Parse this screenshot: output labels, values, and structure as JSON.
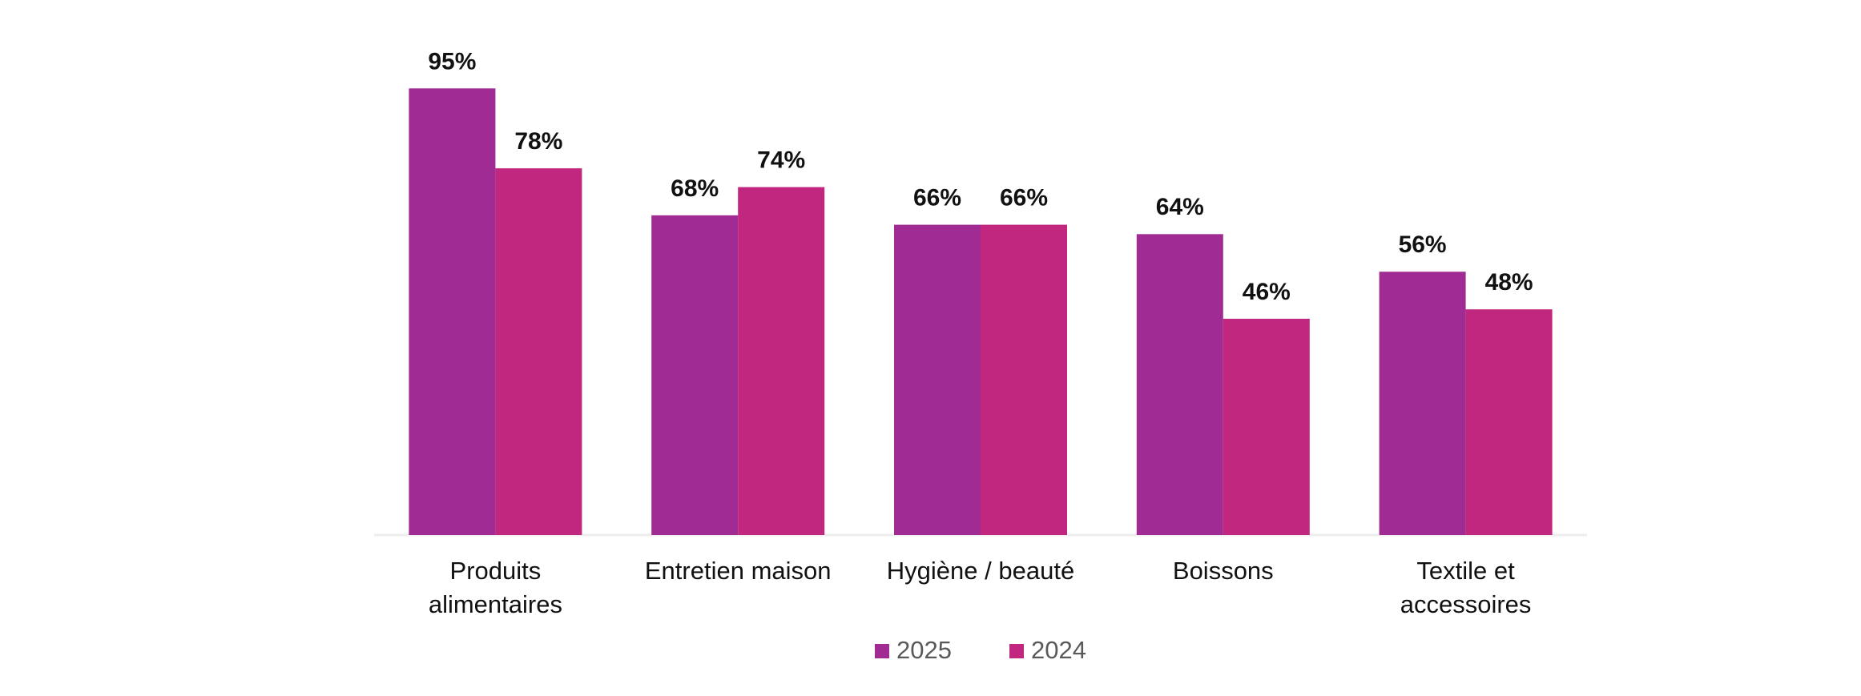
{
  "chart_data": {
    "type": "bar",
    "categories": [
      "Produits\nalimentaires",
      "Entretien maison",
      "Hygiène / beauté",
      "Boissons",
      "Textile et\naccessoires"
    ],
    "series": [
      {
        "name": "2025",
        "color": "#a02b93",
        "values": [
          95,
          68,
          66,
          64,
          56
        ],
        "value_labels": [
          "95%",
          "68%",
          "66%",
          "64%",
          "56%"
        ]
      },
      {
        "name": "2024",
        "color": "#c1277f",
        "values": [
          78,
          74,
          66,
          46,
          48
        ],
        "value_labels": [
          "78%",
          "74%",
          "66%",
          "46%",
          "48%"
        ]
      }
    ],
    "ylim": [
      0,
      100
    ],
    "legend": "bottom"
  }
}
